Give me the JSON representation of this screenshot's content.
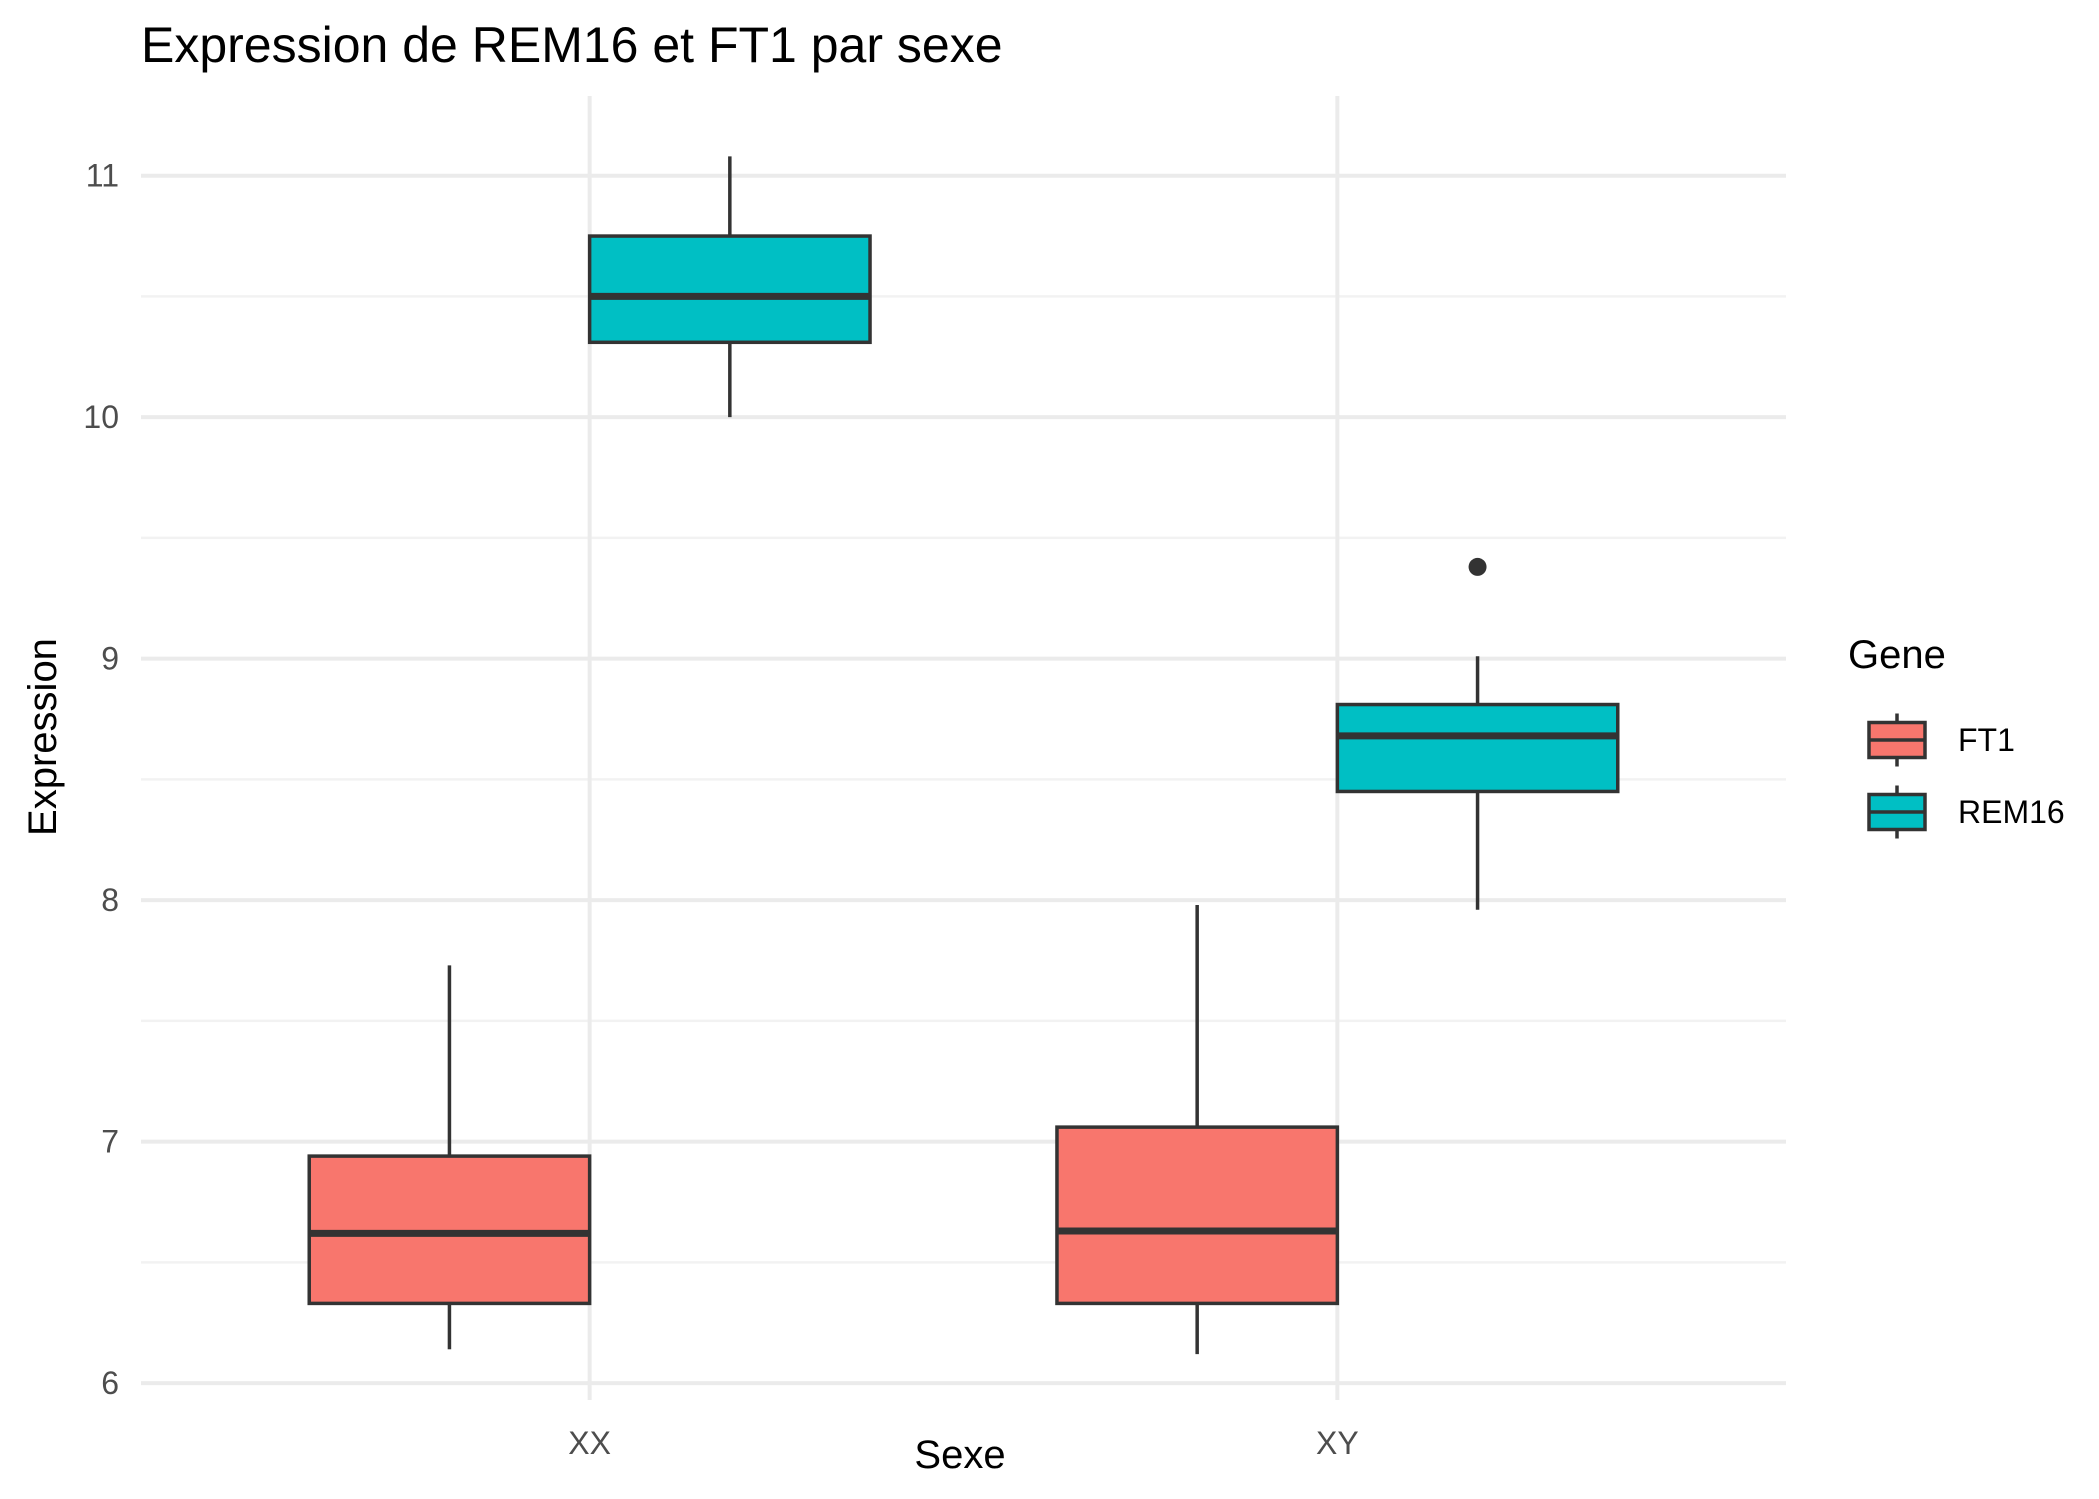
{
  "chart_data": {
    "type": "boxplot",
    "title": "Expression de REM16 et FT1 par sexe",
    "xlabel": "Sexe",
    "ylabel": "Expression",
    "categories": [
      "XX",
      "XY"
    ],
    "ylim": [
      5.93,
      11.33
    ],
    "yticks": [
      6,
      7,
      8,
      9,
      10,
      11
    ],
    "y_minor_ticks": [
      6.5,
      7.5,
      8.5,
      9.5,
      10.5
    ],
    "grid": true,
    "legend": {
      "title": "Gene",
      "position": "right",
      "entries": [
        "FT1",
        "REM16"
      ]
    },
    "series": [
      {
        "name": "FT1",
        "color": "#F8766D",
        "boxes": [
          {
            "category": "XX",
            "whisker_low": 6.14,
            "q1": 6.33,
            "median": 6.62,
            "q3": 6.94,
            "whisker_high": 7.73,
            "outliers": []
          },
          {
            "category": "XY",
            "whisker_low": 6.12,
            "q1": 6.33,
            "median": 6.63,
            "q3": 7.06,
            "whisker_high": 7.98,
            "outliers": []
          }
        ]
      },
      {
        "name": "REM16",
        "color": "#00BFC4",
        "boxes": [
          {
            "category": "XX",
            "whisker_low": 10.0,
            "q1": 10.31,
            "median": 10.5,
            "q3": 10.75,
            "whisker_high": 11.08,
            "outliers": []
          },
          {
            "category": "XY",
            "whisker_low": 7.96,
            "q1": 8.45,
            "median": 8.68,
            "q3": 8.81,
            "whisker_high": 9.01,
            "outliers": [
              9.38
            ]
          }
        ]
      }
    ]
  }
}
